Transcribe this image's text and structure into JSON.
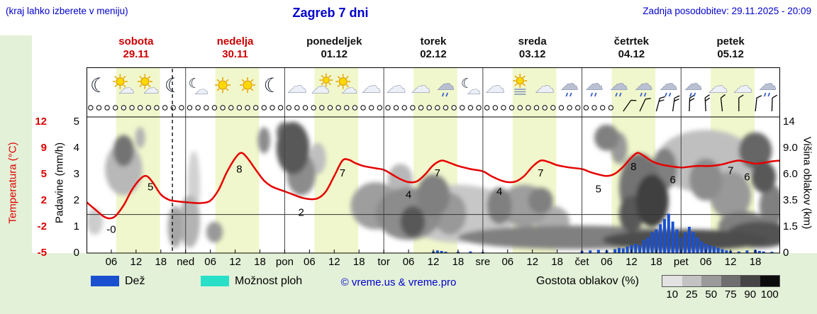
{
  "header": {
    "menu_note": "(kraj lahko izberete v meniju)",
    "title": "Zagreb 7 dni",
    "last_update": "Zadnja posodobitev: 29.11.2025 - 20:09",
    "accent_blue": "#0000cd"
  },
  "days": [
    {
      "name": "sobota",
      "date": "29.11",
      "color": "#cc0000"
    },
    {
      "name": "nedelja",
      "date": "30.11",
      "color": "#cc0000"
    },
    {
      "name": "ponedeljek",
      "date": "01.12",
      "color": "#111111"
    },
    {
      "name": "torek",
      "date": "02.12",
      "color": "#111111"
    },
    {
      "name": "sreda",
      "date": "03.12",
      "color": "#111111"
    },
    {
      "name": "četrtek",
      "date": "04.12",
      "color": "#111111"
    },
    {
      "name": "petek",
      "date": "05.12",
      "color": "#111111"
    }
  ],
  "axes": {
    "temperature": {
      "label": "Temperatura (°C)",
      "color": "#dd0000",
      "ticks": [
        "12",
        "9",
        "5",
        "2",
        "-2",
        "-5"
      ]
    },
    "precipitation": {
      "label": "Padavine (mm/h)",
      "color": "#000000",
      "ticks": [
        "5",
        "4",
        "3",
        "2",
        "1",
        "0"
      ]
    },
    "cloud_height": {
      "label": "Višina oblakov (km)",
      "color": "#000000",
      "ticks": [
        "14",
        "9.0",
        "6.0",
        "3.5",
        "1.5",
        "0"
      ]
    },
    "time": {
      "labels": [
        "06",
        "12",
        "18",
        "ned",
        "06",
        "12",
        "18",
        "pon",
        "06",
        "12",
        "18",
        "tor",
        "06",
        "12",
        "18",
        "sre",
        "06",
        "12",
        "18",
        "čet",
        "06",
        "12",
        "18",
        "pet",
        "06",
        "12",
        "18"
      ]
    }
  },
  "legend": {
    "rain_label": "Dež",
    "rain_color": "#1a50d0",
    "showers_label": "Možnost ploh",
    "showers_color": "#28e0c8",
    "copyright": "© vreme.us & vreme.pro",
    "cloud_density_label": "Gostota oblakov (%)",
    "cloud_density_ticks": [
      "10",
      "25",
      "50",
      "75",
      "90",
      "100"
    ],
    "cloud_density_colors": [
      "#e2e2e2",
      "#c2c2c2",
      "#9a9a9a",
      "#6f6f6f",
      "#454545",
      "#0d0d0d"
    ]
  },
  "chart_data": {
    "type": "line",
    "subtype": "meteogram",
    "x_unit": "hours",
    "x_range": [
      0,
      168
    ],
    "temperature": {
      "name": "Temperatura",
      "unit": "°C",
      "color": "#e60000",
      "points": [
        [
          0,
          1.6
        ],
        [
          2,
          0.7
        ],
        [
          4,
          -0.2
        ],
        [
          5.5,
          -0.5
        ],
        [
          7,
          -0.2
        ],
        [
          9,
          1.2
        ],
        [
          11,
          3.2
        ],
        [
          13,
          4.6
        ],
        [
          14.5,
          5
        ],
        [
          16,
          4.2
        ],
        [
          18,
          2.6
        ],
        [
          20,
          1.9
        ],
        [
          22,
          1.7
        ],
        [
          24,
          1.6
        ],
        [
          26,
          1.5
        ],
        [
          28,
          1.5
        ],
        [
          30,
          1.8
        ],
        [
          32,
          3.2
        ],
        [
          34,
          5.5
        ],
        [
          36,
          7.3
        ],
        [
          37.5,
          8
        ],
        [
          39,
          7.3
        ],
        [
          41,
          5.8
        ],
        [
          43,
          4.4
        ],
        [
          45,
          3.6
        ],
        [
          48,
          3
        ],
        [
          50,
          2.6
        ],
        [
          52,
          2.2
        ],
        [
          54,
          2
        ],
        [
          56,
          2.1
        ],
        [
          58,
          3
        ],
        [
          60,
          5
        ],
        [
          62,
          7
        ],
        [
          63.5,
          7.1
        ],
        [
          65,
          6.7
        ],
        [
          67,
          6.3
        ],
        [
          70,
          6
        ],
        [
          72,
          5.8
        ],
        [
          74,
          5.2
        ],
        [
          76,
          4.6
        ],
        [
          78,
          4.2
        ],
        [
          80,
          4.3
        ],
        [
          82,
          5.2
        ],
        [
          84,
          6.4
        ],
        [
          86,
          7
        ],
        [
          88,
          6.7
        ],
        [
          90,
          6.3
        ],
        [
          93,
          5.9
        ],
        [
          96,
          5.6
        ],
        [
          98,
          5
        ],
        [
          100,
          4.5
        ],
        [
          102,
          4.2
        ],
        [
          104,
          4.3
        ],
        [
          106,
          5
        ],
        [
          108,
          6.2
        ],
        [
          110,
          7
        ],
        [
          112,
          6.8
        ],
        [
          114,
          6.4
        ],
        [
          117,
          6.1
        ],
        [
          120,
          5.9
        ],
        [
          122,
          5.5
        ],
        [
          124,
          5.2
        ],
        [
          126,
          5
        ],
        [
          128,
          5.3
        ],
        [
          130,
          6.2
        ],
        [
          132,
          7.4
        ],
        [
          133.5,
          8
        ],
        [
          135,
          7.6
        ],
        [
          137,
          6.9
        ],
        [
          139,
          6.5
        ],
        [
          141,
          6.3
        ],
        [
          144,
          6.1
        ],
        [
          146,
          6.2
        ],
        [
          148,
          6.3
        ],
        [
          151,
          6.3
        ],
        [
          154,
          6.5
        ],
        [
          156,
          6.8
        ],
        [
          158,
          7
        ],
        [
          160,
          6.8
        ],
        [
          162,
          6.6
        ],
        [
          164,
          6.7
        ],
        [
          166,
          6.9
        ],
        [
          168,
          7
        ]
      ],
      "labels": [
        [
          "-0",
          6,
          -1.9
        ],
        [
          "5",
          15.5,
          3.6
        ],
        [
          "8",
          37,
          5.9
        ],
        [
          "2",
          52,
          0.3
        ],
        [
          "7",
          62,
          5.4
        ],
        [
          "4",
          78,
          2.6
        ],
        [
          "7",
          85,
          5.4
        ],
        [
          "4",
          100,
          3.0
        ],
        [
          "7",
          110,
          5.4
        ],
        [
          "5",
          124,
          3.3
        ],
        [
          "8",
          132.5,
          6.2
        ],
        [
          "6",
          142,
          4.5
        ],
        [
          "7",
          156,
          5.7
        ],
        [
          "6",
          160,
          4.9
        ]
      ]
    },
    "precipitation": {
      "name": "Dež",
      "unit": "mm/h",
      "color": "#1a50d0",
      "bars": [
        [
          84,
          0.06
        ],
        [
          85,
          0.1
        ],
        [
          86,
          0.08
        ],
        [
          87,
          0.05
        ],
        [
          90,
          0.05
        ],
        [
          93,
          0.06
        ],
        [
          96,
          0.04
        ],
        [
          120,
          0.08
        ],
        [
          122,
          0.1
        ],
        [
          124,
          0.12
        ],
        [
          126,
          0.1
        ],
        [
          128,
          0.15
        ],
        [
          129,
          0.2
        ],
        [
          130,
          0.18
        ],
        [
          131,
          0.25
        ],
        [
          132,
          0.3
        ],
        [
          133,
          0.35
        ],
        [
          134,
          0.3
        ],
        [
          135,
          0.5
        ],
        [
          136,
          0.6
        ],
        [
          137,
          0.8
        ],
        [
          138,
          0.9
        ],
        [
          139,
          1.1
        ],
        [
          140,
          1.3
        ],
        [
          141,
          1.5
        ],
        [
          142,
          1.2
        ],
        [
          143,
          0.9
        ],
        [
          144,
          0.6
        ],
        [
          145,
          0.8
        ],
        [
          146,
          1
        ],
        [
          147,
          0.8
        ],
        [
          148,
          0.6
        ],
        [
          149,
          0.45
        ],
        [
          150,
          0.35
        ],
        [
          151,
          0.3
        ],
        [
          152,
          0.25
        ],
        [
          153,
          0.2
        ],
        [
          154,
          0.15
        ],
        [
          155,
          0.1
        ],
        [
          156,
          0.08
        ],
        [
          158,
          0.06
        ],
        [
          160,
          0.1
        ],
        [
          162,
          0.12
        ],
        [
          163,
          0.08
        ],
        [
          164,
          0.06
        ],
        [
          166,
          0.05
        ]
      ]
    },
    "clouds": {
      "note": "cloud density shading, blob format [hour, level(0-5 grid), rx_hours, ry_levels, gray(0=black,1=white)]",
      "blobs": [
        [
          2,
          1.2,
          2,
          0.5,
          0.8
        ],
        [
          26,
          2.6,
          1.5,
          1.3,
          0.82
        ],
        [
          90,
          1.5,
          14,
          1.1,
          0.78
        ],
        [
          150,
          3.5,
          12,
          1.2,
          0.75
        ],
        [
          56,
          3.6,
          2,
          0.6,
          0.75
        ],
        [
          9,
          3.2,
          4.5,
          1.0,
          0.72
        ],
        [
          76,
          2.8,
          3,
          0.6,
          0.72
        ],
        [
          13,
          4.4,
          1.2,
          0.4,
          0.7
        ],
        [
          25,
          1.2,
          2.5,
          1.0,
          0.7
        ],
        [
          113,
          1.2,
          4,
          0.6,
          0.68
        ],
        [
          21.5,
          1.0,
          1.8,
          0.8,
          0.65
        ],
        [
          70,
          1.8,
          6,
          0.9,
          0.62
        ],
        [
          106,
          1.8,
          6,
          0.8,
          0.62
        ],
        [
          88,
          1.5,
          4,
          0.8,
          0.6
        ],
        [
          129,
          4.0,
          2,
          0.6,
          0.6
        ],
        [
          156,
          2.2,
          5,
          0.9,
          0.6
        ],
        [
          31,
          0.8,
          2,
          0.4,
          0.6
        ],
        [
          43,
          4.3,
          1.5,
          0.5,
          0.55
        ],
        [
          52,
          3.0,
          3.5,
          0.8,
          0.55
        ],
        [
          78,
          1.5,
          8,
          1.0,
          0.55
        ],
        [
          150,
          2.8,
          4,
          0.8,
          0.55
        ],
        [
          84,
          2.2,
          4,
          0.8,
          0.5
        ],
        [
          100,
          1.8,
          3,
          0.7,
          0.5
        ],
        [
          110,
          2.0,
          3,
          0.5,
          0.5
        ],
        [
          126,
          4.4,
          3,
          0.5,
          0.5
        ],
        [
          140,
          3.2,
          3,
          0.8,
          0.5
        ],
        [
          118,
          0.6,
          28,
          0.45,
          0.5
        ],
        [
          166,
          1.8,
          3,
          0.8,
          0.5
        ],
        [
          159,
          1.0,
          6,
          0.6,
          0.5
        ],
        [
          134,
          2.5,
          5,
          1.3,
          0.45
        ],
        [
          48,
          4.6,
          2,
          0.4,
          0.45
        ],
        [
          9,
          3.9,
          2.5,
          0.6,
          0.45
        ],
        [
          162,
          3.9,
          4,
          0.7,
          0.4
        ],
        [
          50,
          4.0,
          4,
          1.0,
          0.35
        ],
        [
          79,
          1.2,
          3,
          0.6,
          0.35
        ],
        [
          132,
          1.5,
          3,
          0.7,
          0.35
        ],
        [
          164,
          2.9,
          3,
          0.6,
          0.35
        ],
        [
          163,
          0.7,
          8,
          0.5,
          0.32
        ],
        [
          145,
          0.5,
          20,
          0.4,
          0.3
        ],
        [
          137,
          2.0,
          4,
          1.0,
          0.25
        ]
      ]
    },
    "icons": {
      "first_hour": 3,
      "step_hours": 6,
      "types": [
        "moon",
        "sun-cloud",
        "sun-cloud",
        "moon",
        "moon-cloud",
        "sun",
        "sun",
        "moon",
        "cloud",
        "cloud-sun",
        "sun-cloud",
        "cloud",
        "cloud",
        "cloud",
        "cloud-rain",
        "moon-cloud",
        "cloud",
        "sun-fog",
        "cloud",
        "cloud-rain",
        "cloud-rain",
        "cloud-rain",
        "cloud-rain",
        "cloud-rain",
        "cloud-rain",
        "cloud",
        "cloud",
        "cloud-rain"
      ]
    },
    "cloud_cover_row": {
      "symbol": "open-circle",
      "start_h": 1,
      "end_h": 127,
      "step_h": 2
    },
    "wind_barbs": [
      [
        130,
        1,
        35
      ],
      [
        134,
        1,
        25
      ],
      [
        138,
        2,
        15
      ],
      [
        142,
        2,
        8
      ],
      [
        146,
        2,
        2
      ],
      [
        150,
        2,
        -3
      ],
      [
        154,
        1,
        -6
      ],
      [
        158,
        1,
        0
      ],
      [
        162,
        1,
        6
      ],
      [
        166,
        1,
        2
      ]
    ],
    "daylight_bands": {
      "start_hour": 7.2,
      "end_hour": 17.8,
      "color": "#f1f7cc"
    },
    "now_line_h": 20.8,
    "freezing_line_temp": 0
  }
}
